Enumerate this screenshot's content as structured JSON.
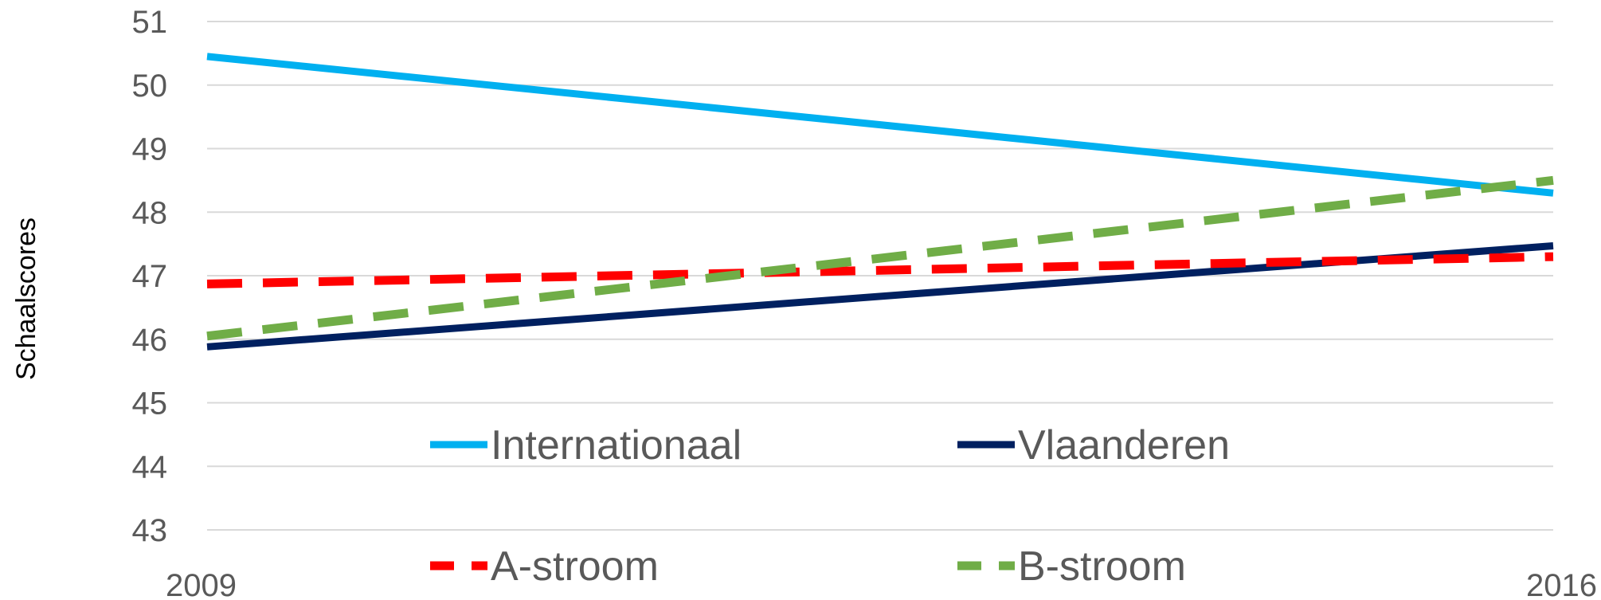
{
  "chart_data": {
    "type": "line",
    "title": "",
    "xlabel": "",
    "ylabel": "Schaalscores",
    "x": [
      "2009",
      "2016"
    ],
    "ylim": [
      43,
      51
    ],
    "yticks": [
      "43",
      "44",
      "45",
      "46",
      "47",
      "48",
      "49",
      "50",
      "51"
    ],
    "grid": true,
    "legend_placement": "bottom-center",
    "series": [
      {
        "name": "Internationaal",
        "values": [
          50.45,
          48.3
        ],
        "color": "#00b0f0",
        "dash": "solid"
      },
      {
        "name": "Vlaanderen",
        "values": [
          45.88,
          47.47
        ],
        "color": "#002060",
        "dash": "solid"
      },
      {
        "name": "A-stroom",
        "values": [
          46.87,
          47.3
        ],
        "color": "#ff0000",
        "dash": "dashed"
      },
      {
        "name": "B-stroom",
        "values": [
          46.05,
          48.5
        ],
        "color": "#70ad47",
        "dash": "dashed"
      }
    ]
  }
}
